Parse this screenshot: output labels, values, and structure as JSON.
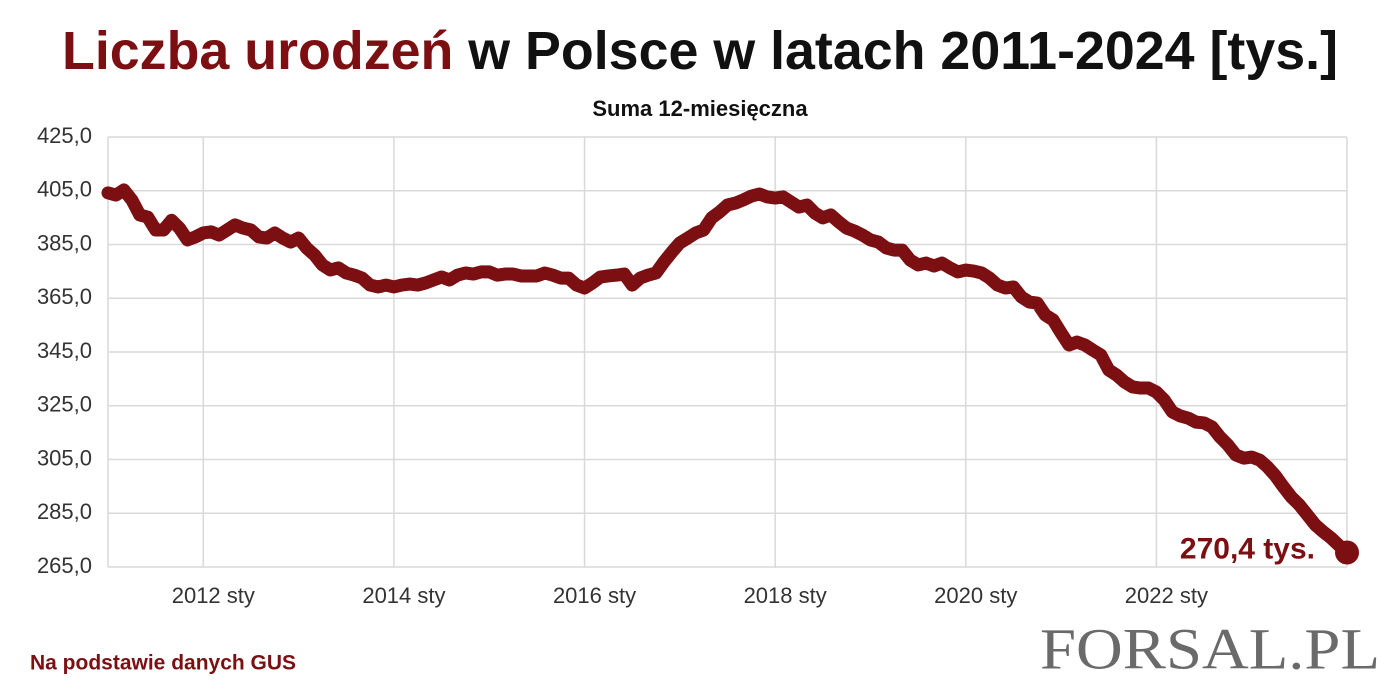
{
  "chart_data": {
    "type": "line",
    "title": [
      "Liczba urodzeń",
      "w Polsce w latach 2011-2024 [tys.]"
    ],
    "subtitle": "Suma 12-miesięczna",
    "source": "Na podstawie danych GUS",
    "logo": "FORSAL.PL",
    "color": "#7b0f12",
    "title_colors": [
      "#7b0f12",
      "#111111"
    ],
    "grid": true,
    "ylim": [
      265,
      425
    ],
    "yticks": [
      {
        "value": 265,
        "label": "265,0"
      },
      {
        "value": 285,
        "label": "285,0"
      },
      {
        "value": 305,
        "label": "305,0"
      },
      {
        "value": 325,
        "label": "325,0"
      },
      {
        "value": 345,
        "label": "345,0"
      },
      {
        "value": 365,
        "label": "365,0"
      },
      {
        "value": 385,
        "label": "385,0"
      },
      {
        "value": 405,
        "label": "405,0"
      },
      {
        "value": 425,
        "label": "425,0"
      }
    ],
    "categories": [
      null,
      null,
      null,
      null,
      null,
      null,
      null,
      null,
      null,
      null,
      null,
      null,
      "2012 sty",
      null,
      null,
      null,
      null,
      null,
      null,
      null,
      null,
      null,
      null,
      null,
      null,
      null,
      null,
      null,
      null,
      null,
      null,
      null,
      null,
      null,
      null,
      null,
      "2014 sty",
      null,
      null,
      null,
      null,
      null,
      null,
      null,
      null,
      null,
      null,
      null,
      null,
      null,
      null,
      null,
      null,
      null,
      null,
      null,
      null,
      null,
      null,
      null,
      "2016 sty",
      null,
      null,
      null,
      null,
      null,
      null,
      null,
      null,
      null,
      null,
      null,
      null,
      null,
      null,
      null,
      null,
      null,
      null,
      null,
      null,
      null,
      null,
      null,
      "2018 sty",
      null,
      null,
      null,
      null,
      null,
      null,
      null,
      null,
      null,
      null,
      null,
      null,
      null,
      null,
      null,
      null,
      null,
      null,
      null,
      null,
      null,
      null,
      null,
      "2020 sty",
      null,
      null,
      null,
      null,
      null,
      null,
      null,
      null,
      null,
      null,
      null,
      null,
      null,
      null,
      null,
      null,
      null,
      null,
      null,
      null,
      null,
      null,
      null,
      "2022 sty",
      null,
      null,
      null,
      null,
      null,
      null,
      null,
      null,
      null,
      null,
      null,
      null,
      null,
      null,
      null,
      null,
      null,
      null,
      null,
      null,
      null,
      null,
      null,
      null
    ],
    "values": [
      404.2,
      403.4,
      405.3,
      401.6,
      396,
      395.2,
      390.4,
      390.4,
      394,
      391.1,
      386.7,
      387.8,
      389.3,
      389.7,
      388.5,
      390.4,
      392.3,
      391.1,
      390.4,
      387.8,
      387.4,
      389.3,
      387.4,
      385.9,
      387.4,
      383.7,
      381.1,
      377.4,
      375.5,
      376.3,
      374.4,
      373.6,
      372.5,
      369.9,
      369.2,
      369.9,
      369.2,
      369.9,
      370.3,
      369.9,
      370.7,
      371.8,
      372.9,
      371.8,
      373.6,
      374.4,
      374,
      374.8,
      374.8,
      373.6,
      374,
      374,
      373.3,
      373.3,
      373.3,
      374.4,
      373.6,
      372.5,
      372.5,
      369.9,
      368.8,
      370.7,
      372.9,
      373.3,
      373.6,
      374,
      369.9,
      372.5,
      373.6,
      374.4,
      378.5,
      382.2,
      385.6,
      387.4,
      389.3,
      390.4,
      394.9,
      397.1,
      399.7,
      400.4,
      401.6,
      403,
      403.8,
      402.7,
      402.3,
      402.7,
      400.8,
      398.9,
      399.7,
      396.7,
      394.9,
      396,
      393.4,
      391.1,
      390,
      388.5,
      386.7,
      385.9,
      383.7,
      382.9,
      382.9,
      379.2,
      377.4,
      378.1,
      377,
      378.1,
      376.3,
      374.8,
      375.5,
      375.1,
      374.4,
      372.5,
      369.9,
      368.8,
      369.2,
      365.5,
      363.6,
      363.2,
      358.8,
      356.9,
      352.1,
      347.6,
      348.7,
      347.6,
      345.7,
      343.9,
      338.3,
      336.4,
      333.8,
      332,
      331.6,
      331.6,
      330.1,
      327.1,
      322.7,
      321.2,
      320.4,
      318.9,
      318.6,
      317.1,
      313.4,
      310.4,
      306.7,
      305.5,
      305.9,
      304.8,
      302.2,
      298.9,
      294.8,
      291,
      288.1,
      284.4,
      280.7,
      278.1,
      275.8,
      273,
      270.4
    ],
    "value_labels": [
      null,
      null,
      null,
      null,
      null,
      null,
      null,
      null,
      null,
      null,
      null,
      null,
      null,
      null,
      null,
      null,
      null,
      null,
      null,
      null,
      null,
      null,
      null,
      null,
      null,
      null,
      null,
      null,
      null,
      null,
      null,
      null,
      null,
      null,
      null,
      null,
      null,
      null,
      null,
      null,
      null,
      null,
      null,
      null,
      null,
      null,
      null,
      null,
      null,
      null,
      null,
      null,
      null,
      null,
      null,
      null,
      null,
      null,
      null,
      null,
      null,
      null,
      null,
      null,
      null,
      null,
      null,
      null,
      null,
      null,
      null,
      null,
      null,
      null,
      null,
      null,
      null,
      null,
      null,
      null,
      null,
      null,
      null,
      null,
      null,
      null,
      null,
      null,
      null,
      null,
      null,
      null,
      null,
      null,
      null,
      null,
      null,
      null,
      null,
      null,
      null,
      null,
      null,
      null,
      null,
      null,
      null,
      null,
      null,
      null,
      null,
      null,
      null,
      null,
      null,
      null,
      null,
      null,
      null,
      null,
      null,
      null,
      null,
      null,
      null,
      null,
      null,
      null,
      null,
      null,
      null,
      null,
      null,
      null,
      null,
      null,
      null,
      null,
      null,
      null,
      null,
      null,
      null,
      null,
      null,
      null,
      null,
      null,
      null,
      null,
      null,
      null,
      null,
      null,
      null,
      null,
      "270,4 tys."
    ]
  }
}
